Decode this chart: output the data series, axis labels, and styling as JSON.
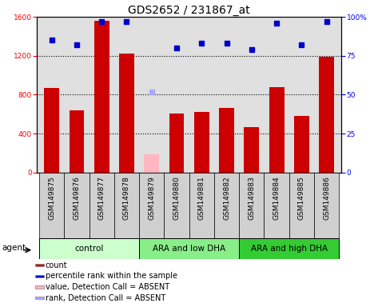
{
  "title": "GDS2652 / 231867_at",
  "samples": [
    "GSM149875",
    "GSM149876",
    "GSM149877",
    "GSM149878",
    "GSM149879",
    "GSM149880",
    "GSM149881",
    "GSM149882",
    "GSM149883",
    "GSM149884",
    "GSM149885",
    "GSM149886"
  ],
  "counts": [
    870,
    640,
    1560,
    1220,
    null,
    610,
    620,
    660,
    470,
    880,
    580,
    1190
  ],
  "absent_value": 190,
  "absent_bar_index": 4,
  "percentile_ranks": [
    85,
    82,
    97,
    97,
    null,
    80,
    83,
    83,
    79,
    96,
    82,
    97
  ],
  "absent_rank": 52,
  "absent_rank_index": 4,
  "bar_color": "#CC0000",
  "absent_bar_color": "#FFB6C1",
  "dot_color": "#0000CC",
  "absent_dot_color": "#AAAAFF",
  "ylim_left": [
    0,
    1600
  ],
  "ylim_right": [
    0,
    100
  ],
  "yticks_left": [
    0,
    400,
    800,
    1200,
    1600
  ],
  "yticks_right": [
    0,
    25,
    50,
    75,
    100
  ],
  "ytick_right_labels": [
    "0",
    "25",
    "50",
    "75",
    "100%"
  ],
  "groups": [
    {
      "label": "control",
      "start": 0,
      "end": 3,
      "color": "#CCFFCC"
    },
    {
      "label": "ARA and low DHA",
      "start": 4,
      "end": 7,
      "color": "#88EE88"
    },
    {
      "label": "ARA and high DHA",
      "start": 8,
      "end": 11,
      "color": "#33CC33"
    }
  ],
  "agent_label": "agent",
  "legend_items": [
    {
      "color": "#CC0000",
      "label": "count"
    },
    {
      "color": "#0000CC",
      "label": "percentile rank within the sample"
    },
    {
      "color": "#FFB6C1",
      "label": "value, Detection Call = ABSENT"
    },
    {
      "color": "#AAAAFF",
      "label": "rank, Detection Call = ABSENT"
    }
  ],
  "bar_width": 0.6,
  "figsize": [
    4.83,
    3.84
  ],
  "dpi": 100,
  "background_color": "#FFFFFF",
  "plot_bg_color": "#E0E0E0",
  "tick_cell_color": "#D0D0D0",
  "title_fontsize": 10,
  "tick_fontsize": 6.5,
  "legend_fontsize": 7,
  "group_fontsize": 7.5
}
